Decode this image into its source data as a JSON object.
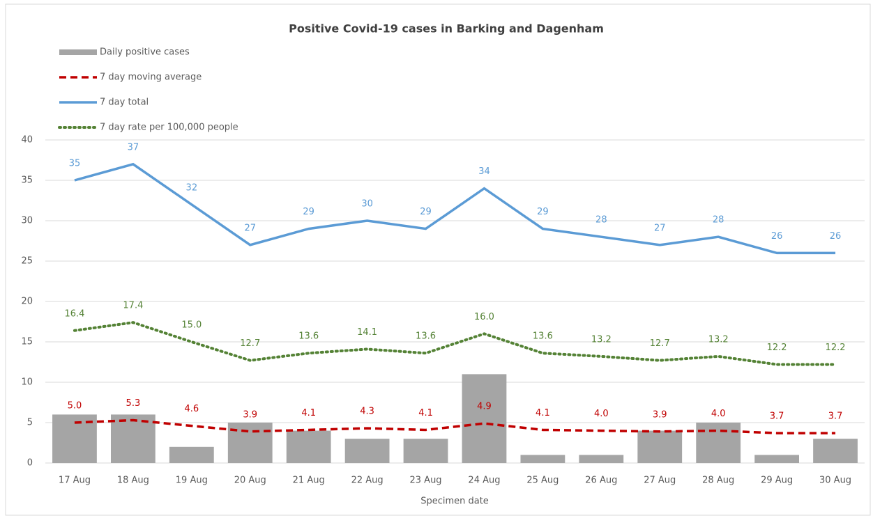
{
  "chart_data": {
    "type": "bar",
    "title": "Positive Covid-19 cases in Barking and Dagenham",
    "x_label": "Specimen date",
    "categories": [
      "17 Aug",
      "18 Aug",
      "19 Aug",
      "20 Aug",
      "21 Aug",
      "22 Aug",
      "23 Aug",
      "24 Aug",
      "25 Aug",
      "26 Aug",
      "27 Aug",
      "28 Aug",
      "29 Aug",
      "30 Aug"
    ],
    "ylim": [
      0,
      40
    ],
    "yticks": [
      0,
      5,
      10,
      15,
      20,
      25,
      30,
      35,
      40
    ],
    "grid": true,
    "legend": "top-left",
    "series": [
      {
        "name": "Daily positive cases",
        "type": "bar",
        "color": "#a5a5a5",
        "values": [
          6,
          6,
          2,
          5,
          4,
          3,
          3,
          11,
          1,
          1,
          4,
          5,
          1,
          3
        ]
      },
      {
        "name": "7 day moving average",
        "type": "line",
        "dash": "dashed",
        "color": "#c00000",
        "values": [
          5.0,
          5.3,
          4.6,
          3.9,
          4.1,
          4.3,
          4.1,
          4.9,
          4.1,
          4.0,
          3.9,
          4.0,
          3.7,
          3.7
        ],
        "value_labels": [
          "5.0",
          "5.3",
          "4.6",
          "3.9",
          "4.1",
          "4.3",
          "4.1",
          "4.9",
          "4.1",
          "4.0",
          "3.9",
          "4.0",
          "3.7",
          "3.7"
        ]
      },
      {
        "name": "7 day total",
        "type": "line",
        "dash": "solid",
        "color": "#5b9bd5",
        "values": [
          35,
          37,
          32,
          27,
          29,
          30,
          29,
          34,
          29,
          28,
          27,
          28,
          26,
          26
        ]
      },
      {
        "name": "7 day rate per 100,000 people",
        "type": "line",
        "dash": "dotted",
        "color": "#548235",
        "values": [
          16.4,
          17.4,
          15.0,
          12.7,
          13.6,
          14.1,
          13.6,
          16.0,
          13.6,
          13.2,
          12.7,
          13.2,
          12.2,
          12.2
        ],
        "value_labels": [
          "16.4",
          "17.4",
          "15.0",
          "12.7",
          "13.6",
          "14.1",
          "13.6",
          "16.0",
          "13.6",
          "13.2",
          "12.7",
          "13.2",
          "12.2",
          "12.2"
        ]
      }
    ]
  }
}
